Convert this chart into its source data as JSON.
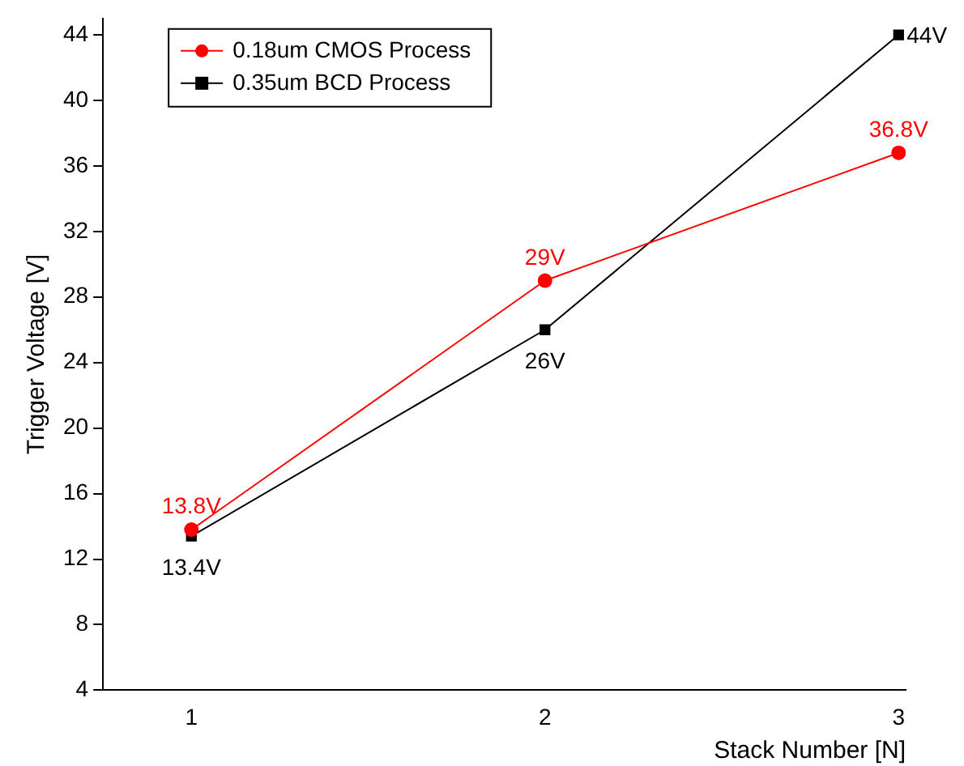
{
  "chart_data": {
    "type": "line",
    "xlabel": "Stack Number [N]",
    "ylabel": "Trigger Voltage [V]",
    "x": [
      1,
      2,
      3
    ],
    "xlim": [
      0.75,
      3.02
    ],
    "xticks": [
      1,
      2,
      3
    ],
    "ylim": [
      4,
      45
    ],
    "yticks": [
      4,
      8,
      12,
      16,
      20,
      24,
      28,
      32,
      36,
      40,
      44
    ],
    "series": [
      {
        "name": "0.18um CMOS Process",
        "color": "#ff0000",
        "marker": "circle",
        "values": [
          13.8,
          29,
          36.8
        ],
        "value_labels": [
          "13.8V",
          "29V",
          "36.8V"
        ]
      },
      {
        "name": "0.35um BCD Process",
        "color": "#000000",
        "marker": "square",
        "values": [
          13.4,
          26,
          44
        ],
        "value_labels": [
          "13.4V",
          "26V",
          "44V"
        ]
      }
    ],
    "legend": "top left",
    "grid": false
  }
}
